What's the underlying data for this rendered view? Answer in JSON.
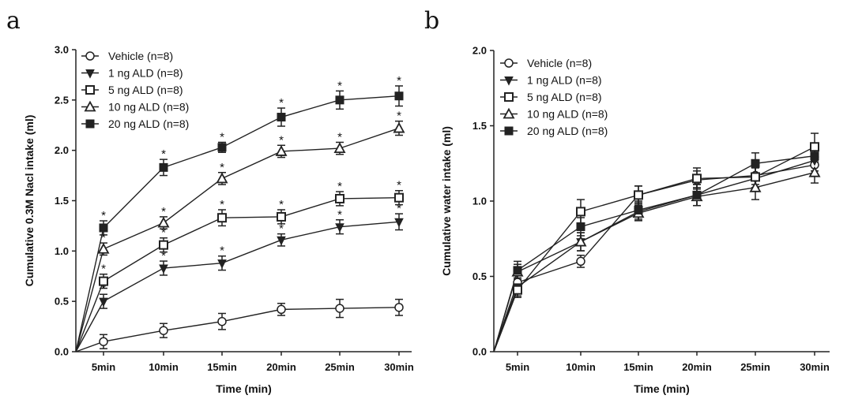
{
  "chart_data": [
    {
      "panel": "a",
      "type": "line",
      "categories": [
        "5min",
        "10min",
        "15min",
        "20min",
        "25min",
        "30min"
      ],
      "xlabel": "Time (min)",
      "ylabel": "Cumulative 0.3M Nacl intake (ml)",
      "ylim": [
        0,
        3.0
      ],
      "yticks": [
        "0.0",
        "0.5",
        "1.0",
        "1.5",
        "2.0",
        "2.5",
        "3.0"
      ],
      "origin": {
        "x": 0,
        "y": 0
      },
      "significance_marker": "*",
      "legend_position": "top-left",
      "series": [
        {
          "name": "Vehicle (n=8)",
          "marker": "open-circle",
          "values": [
            0.1,
            0.21,
            0.3,
            0.42,
            0.43,
            0.44
          ],
          "errors": [
            0.07,
            0.07,
            0.08,
            0.06,
            0.09,
            0.08
          ],
          "significant": [
            false,
            false,
            false,
            false,
            false,
            false
          ]
        },
        {
          "name": "1 ng ALD (n=8)",
          "marker": "filled-triangle-down",
          "values": [
            0.5,
            0.83,
            0.88,
            1.11,
            1.24,
            1.29
          ],
          "errors": [
            0.07,
            0.07,
            0.07,
            0.06,
            0.07,
            0.08
          ],
          "significant": [
            true,
            true,
            true,
            true,
            true,
            true
          ]
        },
        {
          "name": "5 ng ALD (n=8)",
          "marker": "open-square",
          "values": [
            0.7,
            1.06,
            1.33,
            1.34,
            1.52,
            1.53
          ],
          "errors": [
            0.07,
            0.07,
            0.08,
            0.07,
            0.07,
            0.07
          ],
          "significant": [
            true,
            true,
            true,
            true,
            true,
            true
          ]
        },
        {
          "name": "10 ng ALD (n=8)",
          "marker": "open-triangle-up",
          "values": [
            1.02,
            1.28,
            1.72,
            1.99,
            2.02,
            2.22
          ],
          "errors": [
            0.06,
            0.06,
            0.06,
            0.06,
            0.06,
            0.07
          ],
          "significant": [
            true,
            true,
            true,
            true,
            true,
            true
          ]
        },
        {
          "name": "20 ng ALD (n=8)",
          "marker": "filled-square",
          "values": [
            1.23,
            1.83,
            2.03,
            2.33,
            2.5,
            2.54
          ],
          "errors": [
            0.07,
            0.08,
            0.05,
            0.09,
            0.09,
            0.1
          ],
          "significant": [
            true,
            true,
            true,
            true,
            true,
            true
          ]
        }
      ]
    },
    {
      "panel": "b",
      "type": "line",
      "categories": [
        "5min",
        "10min",
        "15min",
        "20min",
        "25min",
        "30min"
      ],
      "xlabel": "Time (min)",
      "ylabel": "Cumulative water  intake (ml)",
      "ylim": [
        0,
        2.0
      ],
      "yticks": [
        "0.0",
        "0.5",
        "1.0",
        "1.5",
        "2.0"
      ],
      "origin": {
        "x": 0,
        "y": 0
      },
      "legend_position": "top-left",
      "series": [
        {
          "name": "Vehicle (n=8)",
          "marker": "open-circle",
          "values": [
            0.46,
            0.6,
            1.04,
            1.14,
            1.17,
            1.24
          ],
          "errors": [
            0.05,
            0.04,
            0.06,
            0.06,
            0.06,
            0.07
          ]
        },
        {
          "name": "1 ng ALD (n=8)",
          "marker": "filled-triangle-down",
          "values": [
            0.43,
            0.73,
            0.93,
            1.04,
            1.15,
            1.27
          ],
          "errors": [
            0.06,
            0.06,
            0.06,
            0.07,
            0.07,
            0.07
          ]
        },
        {
          "name": "5 ng ALD (n=8)",
          "marker": "open-square",
          "values": [
            0.41,
            0.93,
            1.04,
            1.15,
            1.16,
            1.36
          ],
          "errors": [
            0.05,
            0.08,
            0.06,
            0.07,
            0.07,
            0.09
          ]
        },
        {
          "name": "10 ng ALD (n=8)",
          "marker": "open-triangle-up",
          "values": [
            0.53,
            0.73,
            0.92,
            1.03,
            1.09,
            1.19
          ],
          "errors": [
            0.05,
            0.06,
            0.05,
            0.06,
            0.08,
            0.07
          ]
        },
        {
          "name": "20 ng ALD (n=8)",
          "marker": "filled-square",
          "values": [
            0.54,
            0.83,
            0.94,
            1.04,
            1.25,
            1.3
          ],
          "errors": [
            0.06,
            0.06,
            0.06,
            0.07,
            0.07,
            0.07
          ]
        }
      ]
    }
  ]
}
